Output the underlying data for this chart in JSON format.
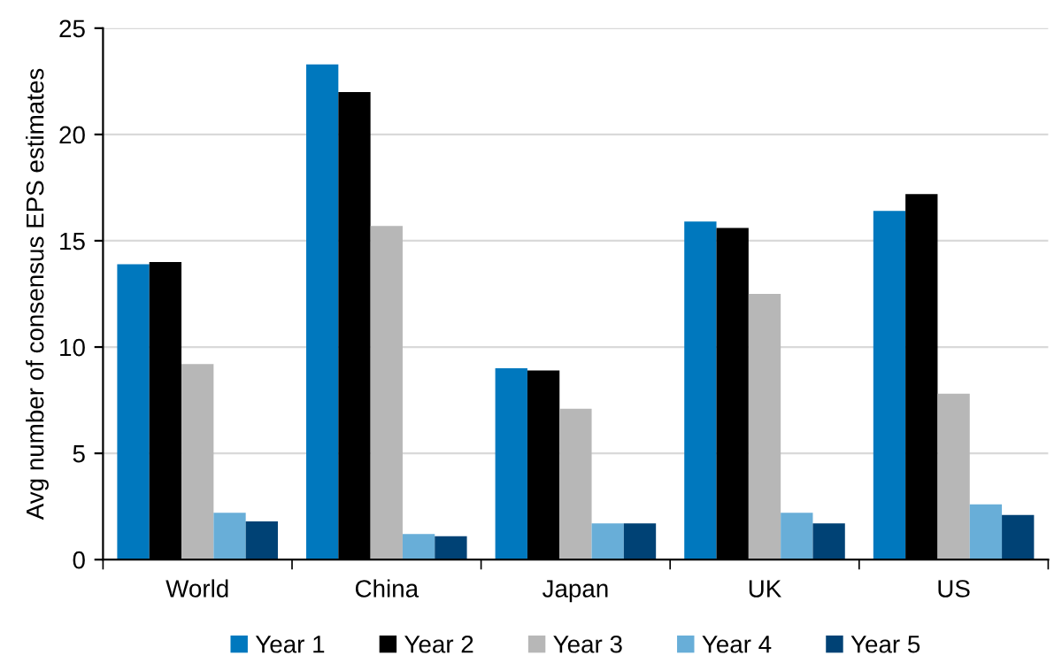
{
  "chart_data": {
    "type": "bar",
    "ylabel": "Avg number of consensus EPS estimates",
    "categories": [
      "World",
      "China",
      "Japan",
      "UK",
      "US"
    ],
    "series": [
      {
        "name": "Year 1",
        "color": "#0078be",
        "values": [
          13.9,
          23.3,
          9.0,
          15.9,
          16.4
        ]
      },
      {
        "name": "Year 2",
        "color": "#000000",
        "values": [
          14.0,
          22.0,
          8.9,
          15.6,
          17.2
        ]
      },
      {
        "name": "Year 3",
        "color": "#b7b7b7",
        "values": [
          9.2,
          15.7,
          7.1,
          12.5,
          7.8
        ]
      },
      {
        "name": "Year 4",
        "color": "#68aed8",
        "values": [
          2.2,
          1.2,
          1.7,
          2.2,
          2.6
        ]
      },
      {
        "name": "Year 5",
        "color": "#004275",
        "values": [
          1.8,
          1.1,
          1.7,
          1.7,
          2.1
        ]
      }
    ],
    "ylim": [
      0,
      25
    ],
    "yticks": [
      0,
      5,
      10,
      15,
      20,
      25
    ],
    "grid": "y",
    "legend": "bottom"
  }
}
